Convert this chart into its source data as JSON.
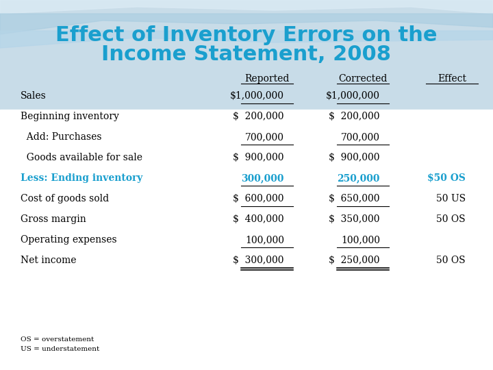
{
  "title_line1": "Effect of Inventory Errors on the",
  "title_line2": "Income Statement, 2008",
  "title_color": "#1a9fce",
  "bg_top_color": "#b8d4e8",
  "bg_bottom_color": "#ffffff",
  "header_row": [
    "",
    "Reported",
    "Corrected",
    "Effect"
  ],
  "rows": [
    {
      "label": "Sales",
      "reported": "$1,000,000",
      "corrected": "$1,000,000",
      "effect": "",
      "indent": false,
      "blue": false,
      "underline_reported": true,
      "underline_corrected": true,
      "double_underline": false
    },
    {
      "label": "Beginning inventory",
      "reported": "$  200,000",
      "corrected": "$  200,000",
      "effect": "",
      "indent": false,
      "blue": false,
      "underline_reported": false,
      "underline_corrected": false,
      "double_underline": false
    },
    {
      "label": "  Add: Purchases",
      "reported": "700,000",
      "corrected": "700,000",
      "effect": "",
      "indent": true,
      "blue": false,
      "underline_reported": true,
      "underline_corrected": true,
      "double_underline": false
    },
    {
      "label": "  Goods available for sale",
      "reported": "$  900,000",
      "corrected": "$  900,000",
      "effect": "",
      "indent": true,
      "blue": false,
      "underline_reported": false,
      "underline_corrected": false,
      "double_underline": false
    },
    {
      "label": "Less: Ending inventory",
      "reported": "300,000",
      "corrected": "250,000",
      "effect": "$50 OS",
      "indent": false,
      "blue": true,
      "underline_reported": true,
      "underline_corrected": true,
      "double_underline": false
    },
    {
      "label": "Cost of goods sold",
      "reported": "$  600,000",
      "corrected": "$  650,000",
      "effect": "50 US",
      "indent": false,
      "blue": false,
      "underline_reported": true,
      "underline_corrected": true,
      "double_underline": false
    },
    {
      "label": "Gross margin",
      "reported": "$  400,000",
      "corrected": "$  350,000",
      "effect": "50 OS",
      "indent": false,
      "blue": false,
      "underline_reported": false,
      "underline_corrected": false,
      "double_underline": false
    },
    {
      "label": "Operating expenses",
      "reported": "100,000",
      "corrected": "100,000",
      "effect": "",
      "indent": false,
      "blue": false,
      "underline_reported": true,
      "underline_corrected": true,
      "double_underline": false
    },
    {
      "label": "Net income",
      "reported": "$  300,000",
      "corrected": "$  250,000",
      "effect": "50 OS",
      "indent": false,
      "blue": false,
      "underline_reported": false,
      "underline_corrected": false,
      "double_underline": true
    }
  ],
  "footer_lines": [
    "OS = overstatement",
    "US = understatement"
  ]
}
